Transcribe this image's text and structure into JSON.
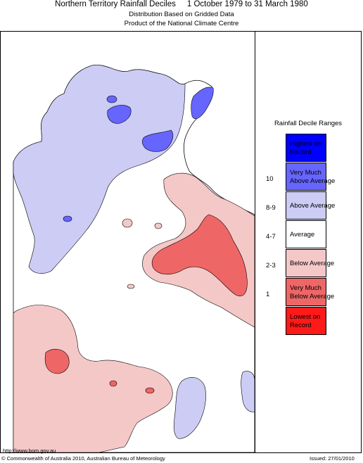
{
  "header": {
    "title": "Northern Territory Rainfall Deciles     1 October 1979 to 31 March 1980",
    "subtitle1": "Distribution Based on Gridded Data",
    "subtitle2": "Product of the National Climate Centre"
  },
  "legend": {
    "title": "Rainfall Decile Ranges",
    "items": [
      {
        "decile": "",
        "label": "Highest on\nRecord",
        "color": "#0000ff"
      },
      {
        "decile": "10",
        "label": "Very Much\nAbove Average",
        "color": "#6666ff"
      },
      {
        "decile": "8-9",
        "label": "Above Average",
        "color": "#ccccf5"
      },
      {
        "decile": "4-7",
        "label": "Average",
        "color": "#ffffff"
      },
      {
        "decile": "2-3",
        "label": "Below Average",
        "color": "#f5c8c8"
      },
      {
        "decile": "1",
        "label": "Very Much\nBelow Average",
        "color": "#ef6666"
      },
      {
        "decile": "",
        "label": "Lowest on\nRecord",
        "color": "#ff1a1a"
      }
    ]
  },
  "footer": {
    "url": "http://www.bom.gov.au",
    "copyright": "© Commonwealth of Australia 2010, Australian Bureau of Meteorology",
    "issued": "Issued: 27/01/2010"
  }
}
